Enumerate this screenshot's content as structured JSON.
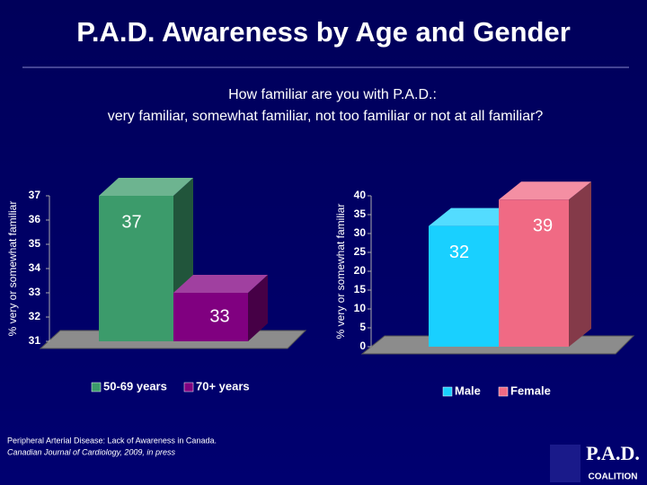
{
  "title": "P.A.D. Awareness by Age and Gender",
  "subtitle": [
    "How familiar are you with P.A.D.:",
    "very familiar, somewhat familiar, not too familiar or not at all familiar?"
  ],
  "source": [
    "Peripheral Arterial Disease:  Lack of Awareness in Canada.",
    "Canadian Journal of Cardiology, 2009, in press"
  ],
  "logo": [
    "P.A.D.",
    "COALITION"
  ],
  "chart_data": [
    {
      "type": "bar",
      "ylabel": "% very or somewhat familiar",
      "categories": [
        "50-69 years",
        "70+ years"
      ],
      "values": [
        37,
        33
      ],
      "colors": [
        "#3c9b6b",
        "#800080"
      ],
      "ylim": [
        31,
        37
      ],
      "yticks": [
        31,
        32,
        33,
        34,
        35,
        36,
        37
      ]
    },
    {
      "type": "bar",
      "ylabel": "% very or somewhat familiar",
      "categories": [
        "Male",
        "Female"
      ],
      "values": [
        32,
        39
      ],
      "colors": [
        "#19d0ff",
        "#f06a84"
      ],
      "ylim": [
        0,
        40
      ],
      "yticks": [
        0,
        5,
        10,
        15,
        20,
        25,
        30,
        35,
        40
      ]
    }
  ]
}
